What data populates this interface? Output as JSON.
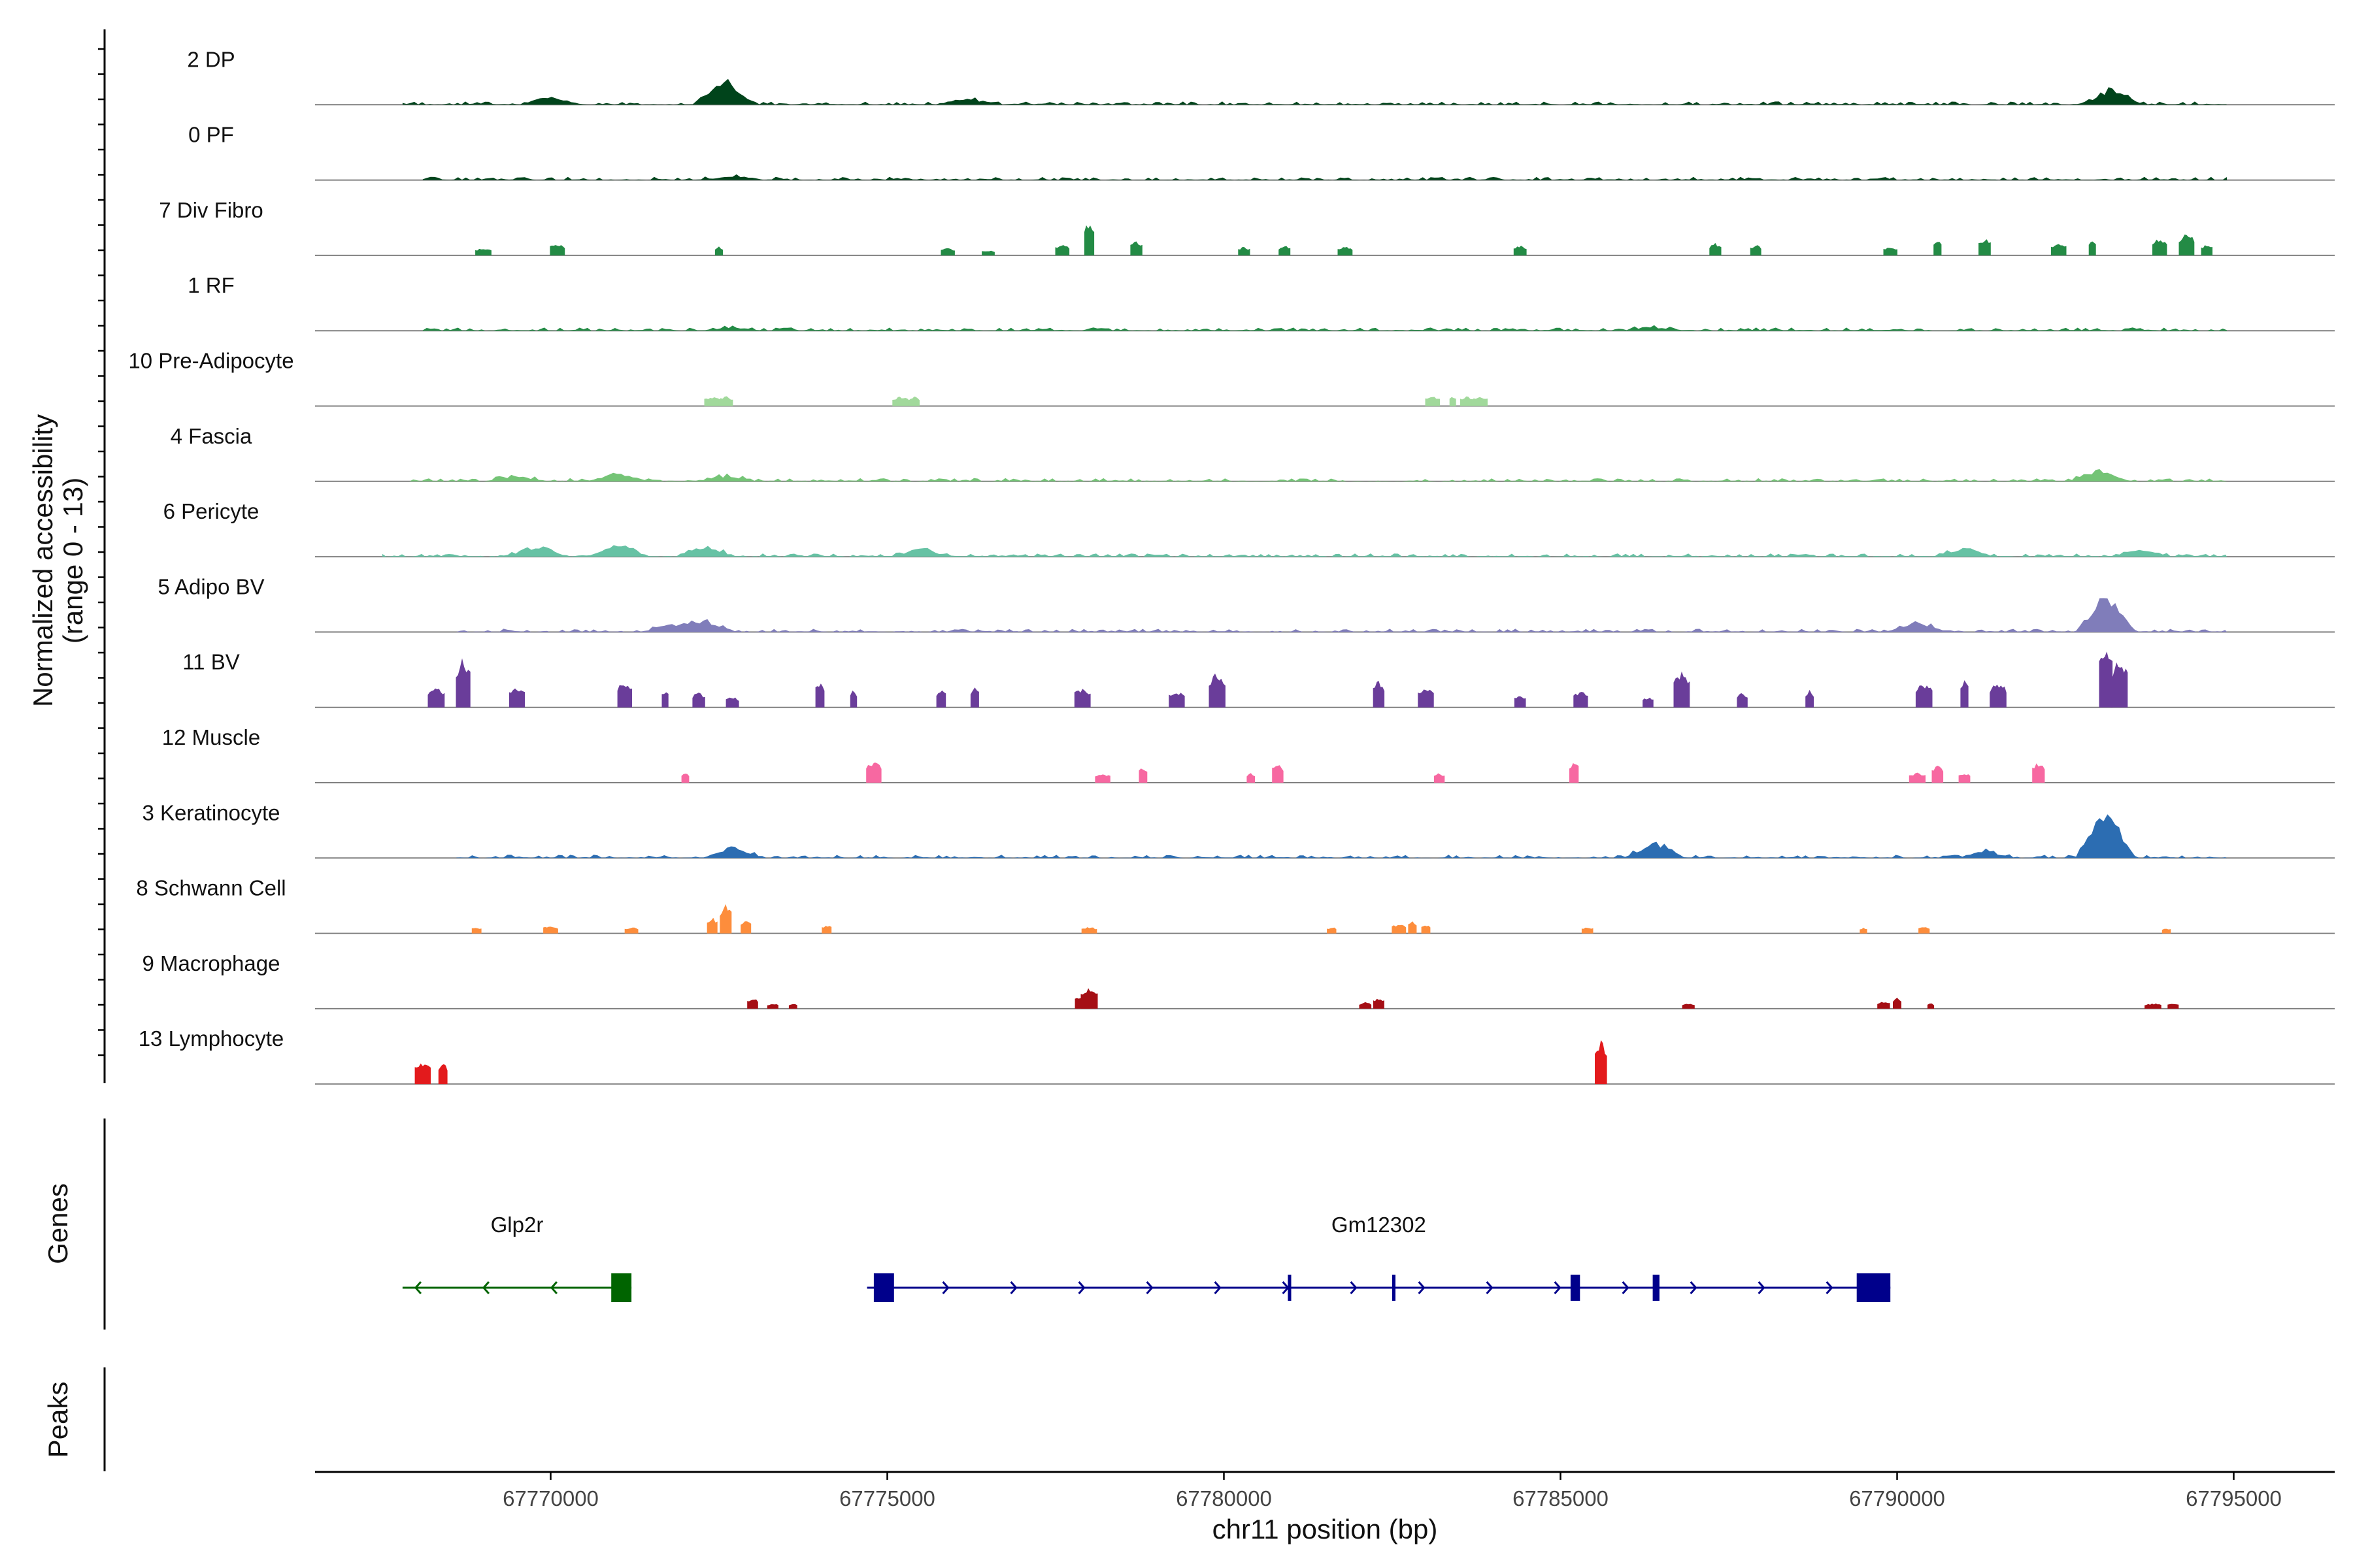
{
  "chart_data": {
    "type": "area",
    "description_axis": {
      "ylabel_line1": "Normalized accessibility",
      "ylabel_line2": "(range 0 - 13)",
      "xlabel": "chr11 position (bp)",
      "xlim": [
        67766500,
        67796500
      ],
      "xticks": [
        67770000,
        67775000,
        67780000,
        67785000,
        67790000,
        67795000
      ],
      "xtick_labels": [
        "67770000",
        "67775000",
        "67780000",
        "67785000",
        "67790000",
        "67795000"
      ],
      "ylim": [
        0,
        13
      ]
    },
    "panel_labels": {
      "genes": "Genes",
      "peaks": "Peaks"
    },
    "tracks": [
      {
        "name": "2 DP",
        "color": "#00441b",
        "style": "continuous",
        "coverage": [
          [
            67767800,
            67794900
          ]
        ],
        "peaks": [
          [
            67772600,
            2.4
          ],
          [
            67793200,
            1.5
          ],
          [
            67770000,
            0.8
          ],
          [
            67776200,
            0.6
          ]
        ]
      },
      {
        "name": "0 PF",
        "color": "#00441b",
        "style": "continuous",
        "coverage": [
          [
            67768100,
            67794900
          ]
        ],
        "peaks": [
          [
            67772700,
            0.4
          ]
        ]
      },
      {
        "name": "7 Div Fibro",
        "color": "#238b45",
        "style": "blocks",
        "peaks": [
          [
            67769000,
            0.7
          ],
          [
            67770100,
            1.1
          ],
          [
            67772500,
            0.8
          ],
          [
            67775900,
            0.7
          ],
          [
            67776500,
            0.5
          ],
          [
            67777600,
            1.0
          ],
          [
            67778000,
            3.2
          ],
          [
            67778700,
            1.3
          ],
          [
            67780300,
            0.8
          ],
          [
            67780900,
            0.9
          ],
          [
            67781800,
            0.8
          ],
          [
            67784400,
            0.9
          ],
          [
            67787300,
            1.1
          ],
          [
            67787900,
            1.0
          ],
          [
            67789900,
            0.8
          ],
          [
            67790600,
            1.4
          ],
          [
            67791300,
            1.6
          ],
          [
            67792400,
            1.1
          ],
          [
            67792900,
            1.5
          ],
          [
            67793900,
            1.6
          ],
          [
            67794300,
            2.0
          ],
          [
            67794600,
            1.0
          ]
        ]
      },
      {
        "name": "1 RF",
        "color": "#238b45",
        "style": "continuous",
        "coverage": [
          [
            67768100,
            67794900
          ]
        ],
        "peaks": [
          [
            67772700,
            0.3
          ],
          [
            67786400,
            0.3
          ]
        ]
      },
      {
        "name": "10 Pre-Adipocyte",
        "color": "#a1d99b",
        "style": "blocks",
        "peaks": [
          [
            67772400,
            0.9
          ],
          [
            67772600,
            0.9
          ],
          [
            67775200,
            0.9
          ],
          [
            67775400,
            0.9
          ],
          [
            67783100,
            0.9
          ],
          [
            67783400,
            0.9
          ],
          [
            67783600,
            0.9
          ],
          [
            67783800,
            0.9
          ]
        ]
      },
      {
        "name": "4 Fascia",
        "color": "#74c476",
        "style": "continuous",
        "coverage": [
          [
            67767900,
            67794900
          ]
        ],
        "peaks": [
          [
            67771000,
            0.8
          ],
          [
            67769500,
            0.5
          ],
          [
            67793000,
            1.0
          ],
          [
            67772600,
            0.5
          ]
        ]
      },
      {
        "name": "6 Pericyte",
        "color": "#66c2a4",
        "style": "continuous",
        "coverage": [
          [
            67767500,
            67794900
          ]
        ],
        "peaks": [
          [
            67769800,
            1.0
          ],
          [
            67771000,
            1.1
          ],
          [
            67772300,
            1.0
          ],
          [
            67775500,
            0.8
          ],
          [
            67791000,
            0.8
          ],
          [
            67793600,
            0.7
          ]
        ]
      },
      {
        "name": "5 Adipo BV",
        "color": "#807dba",
        "style": "continuous",
        "coverage": [
          [
            67768600,
            67794900
          ]
        ],
        "peaks": [
          [
            67793100,
            3.8
          ],
          [
            67772300,
            1.0
          ],
          [
            67790300,
            0.9
          ],
          [
            67771800,
            0.8
          ]
        ]
      },
      {
        "name": "11 BV",
        "color": "#6a3d9a",
        "style": "blocks",
        "peaks": [
          [
            67768700,
            4.6
          ],
          [
            67768300,
            1.8
          ],
          [
            67769500,
            1.9
          ],
          [
            67771100,
            2.4
          ],
          [
            67771700,
            1.7
          ],
          [
            67772200,
            1.4
          ],
          [
            67772700,
            1.0
          ],
          [
            67774000,
            2.4
          ],
          [
            67774500,
            1.7
          ],
          [
            67775800,
            1.8
          ],
          [
            67776300,
            2.0
          ],
          [
            67777900,
            1.8
          ],
          [
            67779300,
            1.5
          ],
          [
            67779900,
            3.2
          ],
          [
            67782300,
            2.5
          ],
          [
            67783000,
            2.0
          ],
          [
            67784400,
            1.2
          ],
          [
            67785300,
            1.5
          ],
          [
            67786300,
            1.0
          ],
          [
            67786800,
            3.3
          ],
          [
            67787700,
            1.4
          ],
          [
            67788700,
            1.6
          ],
          [
            67790400,
            2.3
          ],
          [
            67791000,
            2.5
          ],
          [
            67791500,
            2.3
          ],
          [
            67793100,
            5.5
          ],
          [
            67793300,
            4.5
          ]
        ]
      },
      {
        "name": "12 Muscle",
        "color": "#f768a1",
        "style": "blocks",
        "peaks": [
          [
            67772000,
            0.9
          ],
          [
            67774800,
            2.0
          ],
          [
            67778200,
            0.9
          ],
          [
            67778800,
            1.5
          ],
          [
            67780400,
            0.9
          ],
          [
            67780800,
            1.8
          ],
          [
            67783200,
            0.9
          ],
          [
            67785200,
            2.0
          ],
          [
            67790300,
            0.9
          ],
          [
            67790600,
            1.6
          ],
          [
            67791000,
            0.9
          ],
          [
            67792100,
            1.9
          ]
        ]
      },
      {
        "name": "3 Keratinocyte",
        "color": "#2c6db2",
        "style": "continuous",
        "coverage": [
          [
            67768600,
            67794900
          ]
        ],
        "peaks": [
          [
            67793100,
            4.7
          ],
          [
            67786400,
            1.5
          ],
          [
            67772700,
            1.0
          ],
          [
            67791300,
            0.6
          ]
        ]
      },
      {
        "name": "8 Schwann Cell",
        "color": "#fd8d3c",
        "style": "blocks",
        "peaks": [
          [
            67768900,
            0.6
          ],
          [
            67770000,
            0.7
          ],
          [
            67771200,
            0.6
          ],
          [
            67772400,
            1.5
          ],
          [
            67772600,
            2.6
          ],
          [
            67772900,
            1.2
          ],
          [
            67774100,
            0.8
          ],
          [
            67778000,
            0.6
          ],
          [
            67781600,
            0.6
          ],
          [
            67782600,
            0.9
          ],
          [
            67782800,
            1.1
          ],
          [
            67783000,
            0.8
          ],
          [
            67785400,
            0.6
          ],
          [
            67789500,
            0.5
          ],
          [
            67790400,
            0.6
          ],
          [
            67794000,
            0.5
          ]
        ]
      },
      {
        "name": "9 Macrophage",
        "color": "#a50f15",
        "style": "blocks",
        "peaks": [
          [
            67773000,
            1.0
          ],
          [
            67773300,
            0.5
          ],
          [
            67773600,
            0.5
          ],
          [
            67777900,
            1.2
          ],
          [
            67778000,
            2.0
          ],
          [
            67782100,
            0.6
          ],
          [
            67782300,
            1.0
          ],
          [
            67786900,
            0.5
          ],
          [
            67789800,
            0.7
          ],
          [
            67790000,
            1.0
          ],
          [
            67790500,
            0.5
          ],
          [
            67793800,
            0.5
          ],
          [
            67794100,
            0.5
          ]
        ]
      },
      {
        "name": "13 Lymphocyte",
        "color": "#e31a1c",
        "style": "blocks",
        "peaks": [
          [
            67768100,
            2.0
          ],
          [
            67768400,
            2.0
          ],
          [
            67785600,
            4.0
          ]
        ]
      }
    ],
    "genes": [
      {
        "name": "Glp2r",
        "strand": "-",
        "start": 67767800,
        "end": 67771200,
        "color": "#006400",
        "exons": [
          [
            67770900,
            67771200
          ]
        ]
      },
      {
        "name": "Gm12302",
        "strand": "+",
        "start": 67774700,
        "end": 67789900,
        "color": "#00008b",
        "exons": [
          [
            67774800,
            67775100
          ],
          [
            67780950,
            67781000
          ],
          [
            67782500,
            67782540
          ],
          [
            67785150,
            67785290
          ],
          [
            67786370,
            67786470
          ],
          [
            67789400,
            67789900
          ]
        ]
      }
    ]
  }
}
